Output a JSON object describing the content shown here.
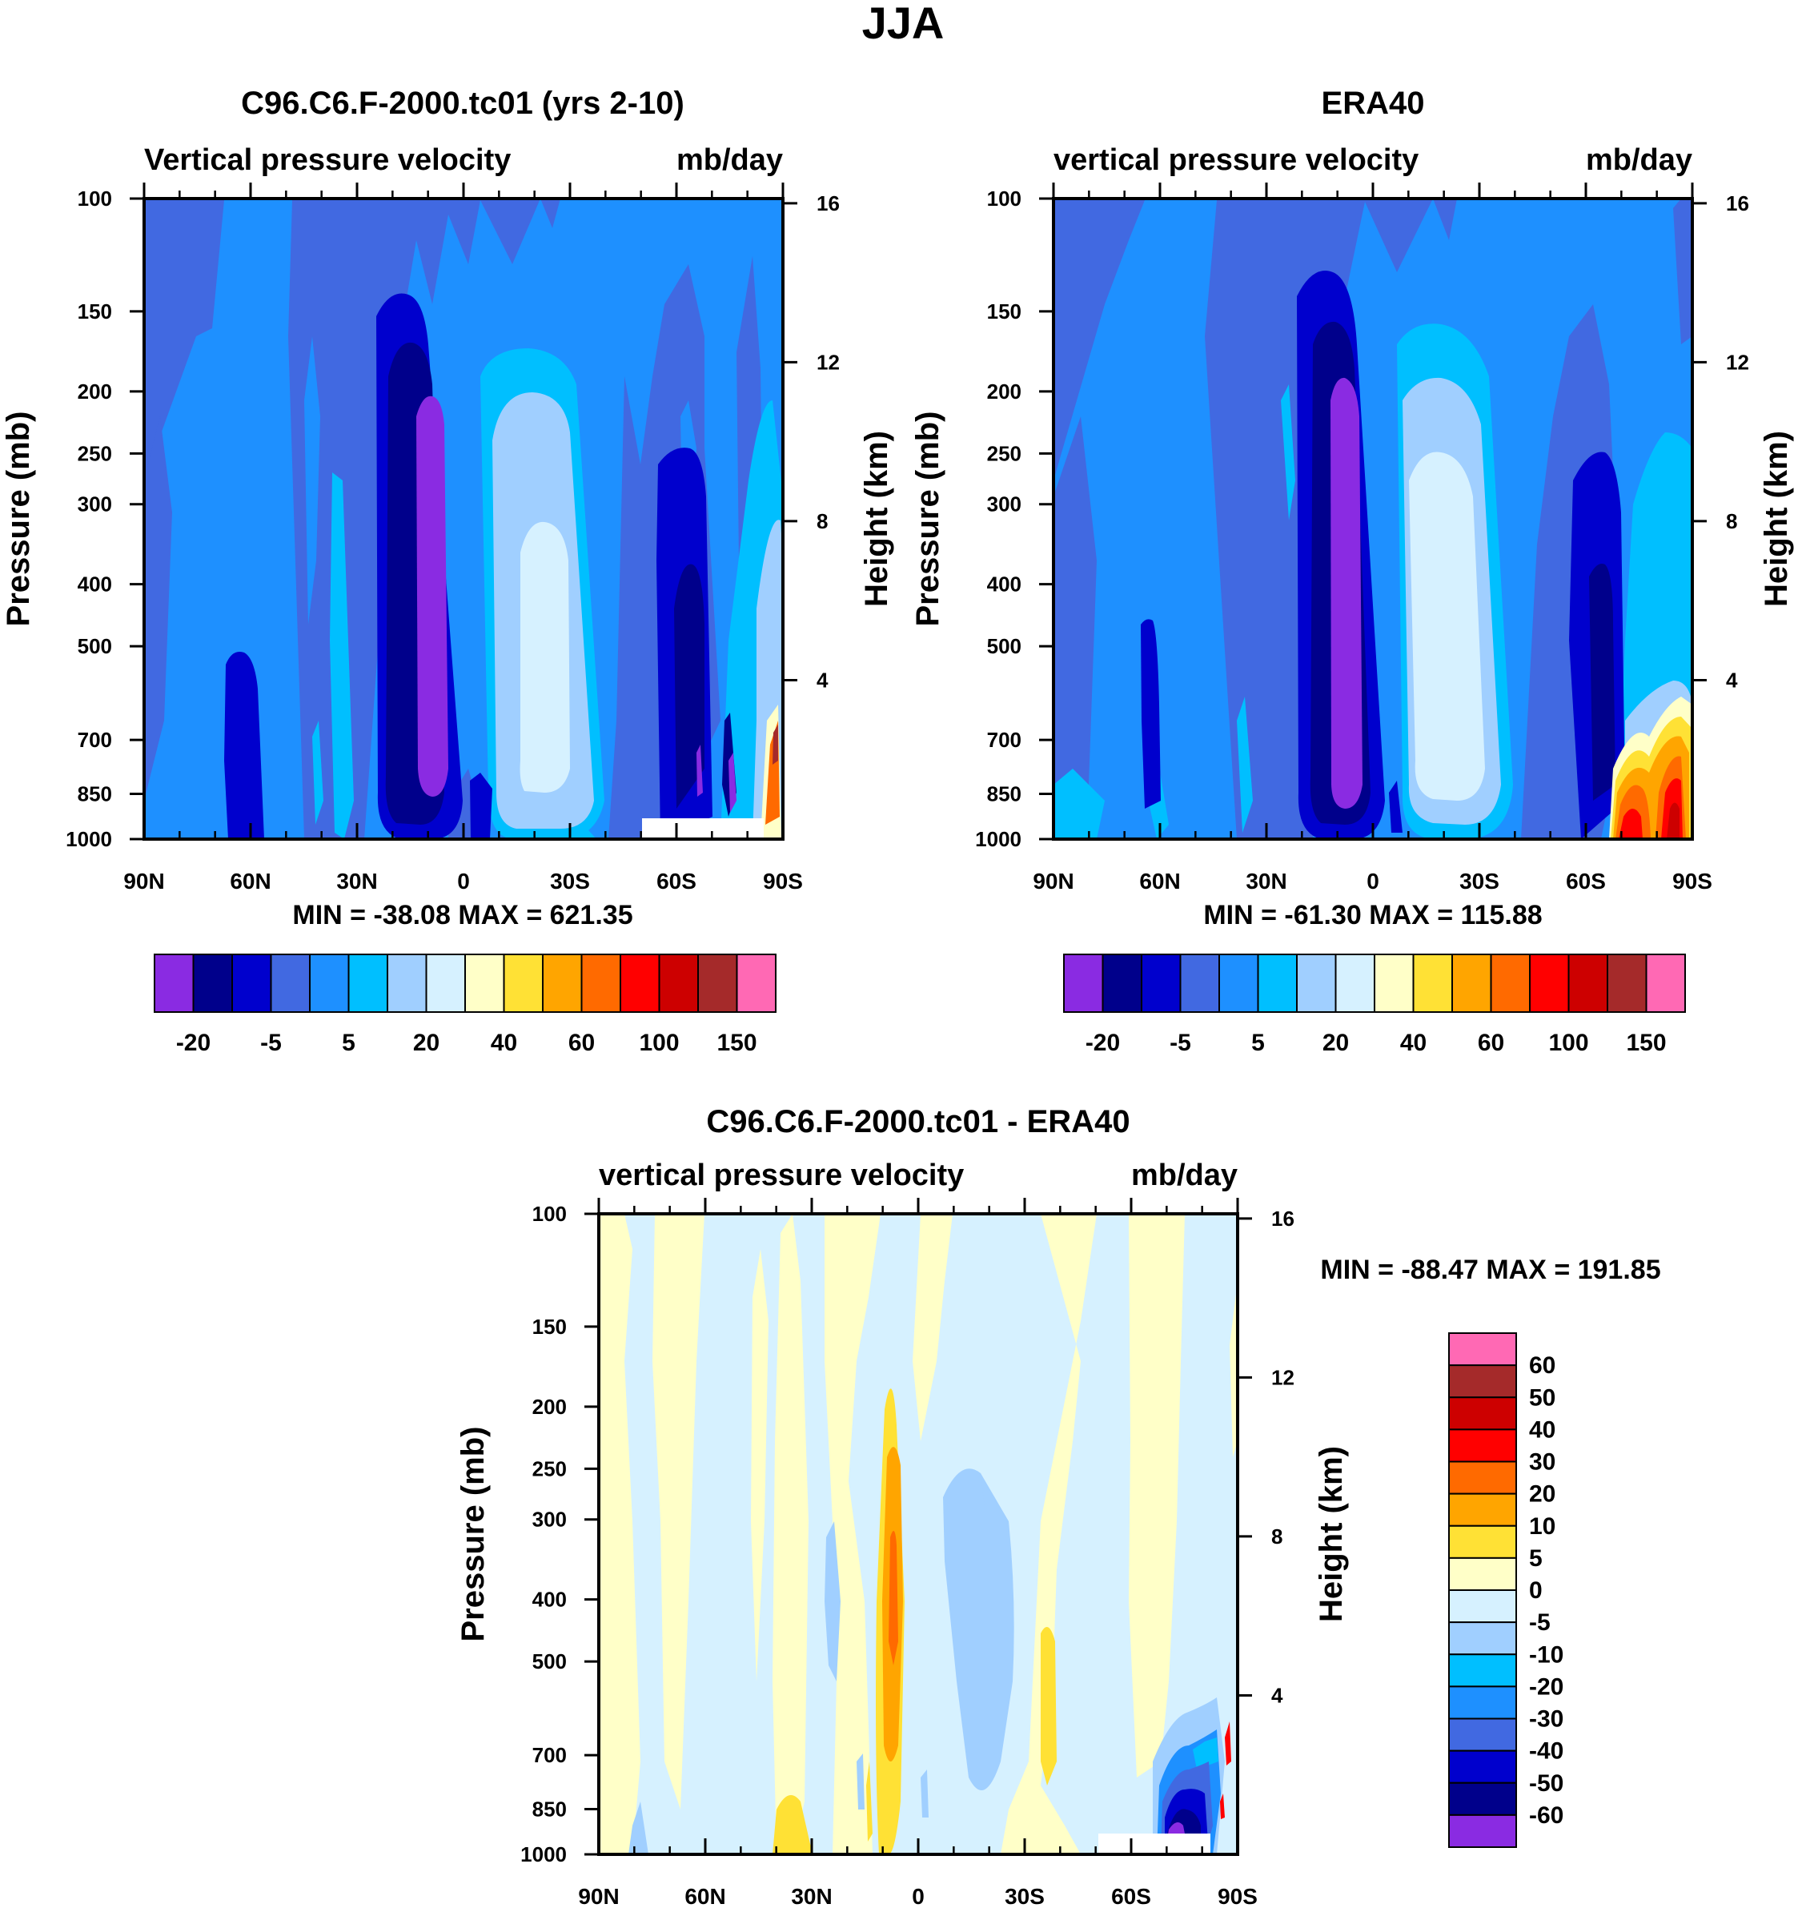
{
  "figure": {
    "title": "JJA"
  },
  "chart_data": [
    {
      "type": "heatmap",
      "title": "C96.C6.F-2000.tc01 (yrs 2-10)",
      "left_label": "Vertical pressure velocity",
      "right_label": "mb/day",
      "xlabel": "",
      "ylabel": "Pressure (mb)",
      "y2label": "Height (km)",
      "x_ticks": [
        "90N",
        "60N",
        "30N",
        "0",
        "30S",
        "60S",
        "90S"
      ],
      "x_values": [
        90,
        60,
        30,
        0,
        -30,
        -60,
        -90
      ],
      "y_ticks": [
        100,
        150,
        200,
        250,
        300,
        400,
        500,
        700,
        850,
        1000
      ],
      "ylim": [
        1000,
        100
      ],
      "y2_ticks": [
        16,
        12,
        8,
        4
      ],
      "stats": "MIN = -38.08  MAX = 621.35",
      "levels": [
        -20,
        -10,
        -5,
        0,
        5,
        10,
        20,
        30,
        40,
        50,
        60,
        80,
        100,
        120,
        150
      ],
      "level_labels": [
        "-20",
        "-5",
        "5",
        "20",
        "40",
        "60",
        "100",
        "150"
      ],
      "colors": [
        "#8a2be2",
        "#00008b",
        "#0000cd",
        "#4169e1",
        "#1e90ff",
        "#00bfff",
        "#a0cfff",
        "#d6f1ff",
        "#ffffc8",
        "#ffe135",
        "#ffa500",
        "#ff6a00",
        "#ff0000",
        "#cd0000",
        "#a52a2a",
        "#ff69b4"
      ]
    },
    {
      "type": "heatmap",
      "title": "ERA40",
      "left_label": "vertical pressure velocity",
      "right_label": "mb/day",
      "xlabel": "",
      "ylabel": "Pressure (mb)",
      "y2label": "Height (km)",
      "x_ticks": [
        "90N",
        "60N",
        "30N",
        "0",
        "30S",
        "60S",
        "90S"
      ],
      "x_values": [
        90,
        60,
        30,
        0,
        -30,
        -60,
        -90
      ],
      "y_ticks": [
        100,
        150,
        200,
        250,
        300,
        400,
        500,
        700,
        850,
        1000
      ],
      "ylim": [
        1000,
        100
      ],
      "y2_ticks": [
        16,
        12,
        8,
        4
      ],
      "stats": "MIN = -61.30  MAX = 115.88",
      "levels": [
        -20,
        -10,
        -5,
        0,
        5,
        10,
        20,
        30,
        40,
        50,
        60,
        80,
        100,
        120,
        150
      ],
      "level_labels": [
        "-20",
        "-5",
        "5",
        "20",
        "40",
        "60",
        "100",
        "150"
      ],
      "colors": [
        "#8a2be2",
        "#00008b",
        "#0000cd",
        "#4169e1",
        "#1e90ff",
        "#00bfff",
        "#a0cfff",
        "#d6f1ff",
        "#ffffc8",
        "#ffe135",
        "#ffa500",
        "#ff6a00",
        "#ff0000",
        "#cd0000",
        "#a52a2a",
        "#ff69b4"
      ]
    },
    {
      "type": "heatmap",
      "title": "C96.C6.F-2000.tc01 - ERA40",
      "left_label": "vertical pressure velocity",
      "right_label": "mb/day",
      "xlabel": "",
      "ylabel": "Pressure (mb)",
      "y2label": "Height (km)",
      "x_ticks": [
        "90N",
        "60N",
        "30N",
        "0",
        "30S",
        "60S",
        "90S"
      ],
      "x_values": [
        90,
        60,
        30,
        0,
        -30,
        -60,
        -90
      ],
      "y_ticks": [
        100,
        150,
        200,
        250,
        300,
        400,
        500,
        700,
        850,
        1000
      ],
      "ylim": [
        1000,
        100
      ],
      "y2_ticks": [
        16,
        12,
        8,
        4
      ],
      "stats": "MIN = -88.47  MAX = 191.85",
      "levels": [
        -60,
        -50,
        -40,
        -30,
        -20,
        -10,
        -5,
        0,
        5,
        10,
        20,
        30,
        40,
        50,
        60
      ],
      "level_labels": [
        "60",
        "50",
        "40",
        "30",
        "20",
        "10",
        "5",
        "0",
        "-5",
        "-10",
        "-20",
        "-30",
        "-40",
        "-50",
        "-60"
      ],
      "colors": [
        "#8a2be2",
        "#00008b",
        "#0000cd",
        "#4169e1",
        "#1e90ff",
        "#00bfff",
        "#a0cfff",
        "#d6f1ff",
        "#ffffc8",
        "#ffe135",
        "#ffa500",
        "#ff6a00",
        "#ff0000",
        "#cd0000",
        "#a52a2a",
        "#ff69b4"
      ]
    }
  ]
}
